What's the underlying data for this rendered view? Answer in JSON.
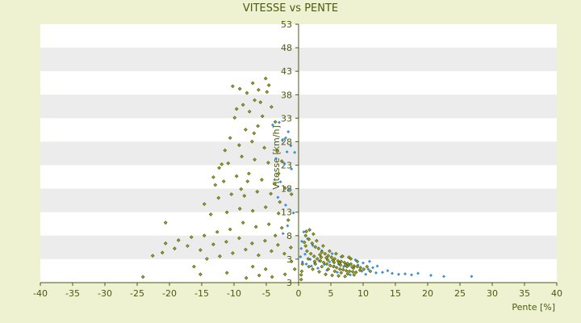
{
  "chart_data": {
    "type": "scatter",
    "title": "VITESSE vs PENTE",
    "xlabel": "Pente [%]",
    "ylabel": "Vitesse [km/h]",
    "xlim": [
      -40,
      40
    ],
    "ylim": [
      3,
      53
    ],
    "x_ticks": [
      "-40",
      "-35",
      "-30",
      "-25",
      "-20",
      "-15",
      "-10",
      "-5",
      "0",
      "5",
      "10",
      "15",
      "20",
      "25",
      "30",
      "35",
      "40"
    ],
    "y_ticks": [
      "53",
      "48",
      "43",
      "38",
      "33",
      "28",
      "23",
      "18",
      "13",
      "8",
      "3",
      "3"
    ],
    "grid": "alternating horizontal bands",
    "colors": {
      "background": "#eef2d0",
      "plot_band_light": "#ffffff",
      "plot_band_dark": "#ececec",
      "axis": "#4b5a12",
      "series_a": "#3a8fd8",
      "series_b": "#9aa21c"
    },
    "series": [
      {
        "color": "#3a8fd8",
        "points": [
          [
            -1.6,
            32.2
          ],
          [
            -2.0,
            31.0
          ],
          [
            -1.2,
            29.5
          ],
          [
            -2.5,
            30.5
          ],
          [
            -1.8,
            28.3
          ],
          [
            -0.6,
            28.2
          ],
          [
            -3.0,
            34.0
          ],
          [
            -2.2,
            26.0
          ],
          [
            -1.1,
            25.0
          ],
          [
            -2.8,
            22.5
          ],
          [
            -1.5,
            21.0
          ],
          [
            -3.2,
            19.5
          ],
          [
            -2.0,
            18.0
          ],
          [
            -0.8,
            16.5
          ],
          [
            -1.7,
            14.0
          ],
          [
            -2.4,
            12.5
          ],
          [
            -3.5,
            27.0
          ],
          [
            -4.0,
            33.5
          ],
          [
            1.0,
            8.5
          ],
          [
            1.8,
            7.5
          ],
          [
            2.5,
            6.8
          ],
          [
            3.2,
            7.2
          ],
          [
            4.0,
            6.5
          ],
          [
            4.8,
            7.0
          ],
          [
            5.5,
            6.2
          ],
          [
            6.2,
            6.6
          ],
          [
            7.0,
            6.1
          ],
          [
            7.8,
            6.3
          ],
          [
            8.5,
            6.0
          ],
          [
            9.2,
            6.4
          ],
          [
            10.0,
            6.8
          ],
          [
            10.8,
            5.6
          ],
          [
            11.5,
            5.9
          ],
          [
            12.2,
            6.2
          ],
          [
            13.0,
            5.0
          ],
          [
            13.8,
            5.3
          ],
          [
            14.5,
            4.8
          ],
          [
            15.5,
            4.6
          ],
          [
            16.5,
            4.7
          ],
          [
            17.5,
            4.5
          ],
          [
            18.5,
            4.8
          ],
          [
            20.5,
            4.4
          ],
          [
            22.5,
            4.2
          ],
          [
            26.8,
            4.2
          ],
          [
            9.8,
            5.2
          ],
          [
            8.8,
            7.4
          ],
          [
            6.6,
            8.0
          ],
          [
            5.2,
            8.6
          ],
          [
            3.6,
            9.2
          ],
          [
            2.2,
            10.2
          ],
          [
            1.4,
            11.5
          ],
          [
            0.8,
            12.8
          ],
          [
            11.0,
            7.1
          ],
          [
            12.0,
            4.9
          ],
          [
            10.4,
            4.6
          ],
          [
            8.0,
            4.5
          ],
          [
            6.0,
            5.0
          ],
          [
            4.4,
            5.4
          ],
          [
            3.0,
            5.8
          ],
          [
            2.0,
            6.2
          ],
          [
            1.2,
            6.6
          ],
          [
            0.6,
            7.0
          ],
          [
            0.3,
            8.0
          ],
          [
            0.4,
            9.6
          ],
          [
            0.5,
            11.0
          ]
        ]
      },
      {
        "color": "#9aa21c",
        "points": [
          [
            -10.2,
            41.0
          ],
          [
            -9.1,
            40.5
          ],
          [
            -8.0,
            39.7
          ],
          [
            -7.1,
            41.6
          ],
          [
            -6.2,
            40.3
          ],
          [
            -5.1,
            42.5
          ],
          [
            -4.6,
            41.2
          ],
          [
            -6.8,
            38.3
          ],
          [
            -8.6,
            37.4
          ],
          [
            -9.6,
            36.6
          ],
          [
            -7.6,
            36.1
          ],
          [
            -5.6,
            35.2
          ],
          [
            -4.2,
            37.0
          ],
          [
            -3.6,
            34.1
          ],
          [
            -6.3,
            33.3
          ],
          [
            -8.2,
            32.6
          ],
          [
            -10.6,
            31.0
          ],
          [
            -11.4,
            28.6
          ],
          [
            -9.2,
            29.6
          ],
          [
            -7.2,
            30.3
          ],
          [
            -5.3,
            29.1
          ],
          [
            -3.3,
            28.4
          ],
          [
            -2.6,
            26.5
          ],
          [
            -4.7,
            26.2
          ],
          [
            -6.8,
            26.8
          ],
          [
            -8.8,
            27.4
          ],
          [
            -10.9,
            26.1
          ],
          [
            -12.3,
            25.2
          ],
          [
            -13.2,
            23.4
          ],
          [
            -11.6,
            22.6
          ],
          [
            -9.6,
            23.6
          ],
          [
            -7.7,
            24.1
          ],
          [
            -5.7,
            22.9
          ],
          [
            -3.7,
            22.1
          ],
          [
            -2.1,
            21.3
          ],
          [
            -4.3,
            20.2
          ],
          [
            -6.4,
            20.6
          ],
          [
            -8.4,
            19.8
          ],
          [
            -10.4,
            20.1
          ],
          [
            -12.4,
            19.4
          ],
          [
            -14.6,
            18.2
          ],
          [
            -13.6,
            16.2
          ],
          [
            -11.1,
            16.6
          ],
          [
            -9.1,
            17.3
          ],
          [
            -7.1,
            16.9
          ],
          [
            -5.1,
            17.6
          ],
          [
            -3.1,
            16.4
          ],
          [
            -1.6,
            15.1
          ],
          [
            -2.6,
            13.6
          ],
          [
            -4.6,
            14.3
          ],
          [
            -6.6,
            13.8
          ],
          [
            -8.6,
            14.6
          ],
          [
            -10.6,
            13.3
          ],
          [
            -12.6,
            12.8
          ],
          [
            -14.6,
            12.1
          ],
          [
            -16.6,
            11.8
          ],
          [
            -18.6,
            11.2
          ],
          [
            -20.6,
            10.6
          ],
          [
            -22.6,
            8.2
          ],
          [
            -21.1,
            8.8
          ],
          [
            -19.2,
            9.6
          ],
          [
            -17.2,
            10.1
          ],
          [
            -15.2,
            9.3
          ],
          [
            -13.2,
            10.4
          ],
          [
            -11.2,
            10.9
          ],
          [
            -9.2,
            11.6
          ],
          [
            -7.2,
            10.6
          ],
          [
            -5.2,
            11.1
          ],
          [
            -3.2,
            10.3
          ],
          [
            -1.2,
            9.8
          ],
          [
            -2.2,
            8.6
          ],
          [
            -4.2,
            9.1
          ],
          [
            -6.2,
            8.3
          ],
          [
            -8.2,
            9.4
          ],
          [
            -10.2,
            8.7
          ],
          [
            -12.2,
            8.1
          ],
          [
            -14.2,
            7.6
          ],
          [
            -16.2,
            6.1
          ],
          [
            -15.2,
            4.6
          ],
          [
            -8.1,
            3.9
          ],
          [
            -6.1,
            4.4
          ],
          [
            -4.1,
            4.1
          ],
          [
            -2.1,
            4.6
          ],
          [
            -11.1,
            4.9
          ],
          [
            -7.1,
            6.1
          ],
          [
            -5.1,
            5.6
          ],
          [
            -24.1,
            4.1
          ],
          [
            -20.6,
            14.6
          ],
          [
            -1.1,
            7.1
          ],
          [
            -0.6,
            5.6
          ],
          [
            -3.6,
            12.1
          ],
          [
            -9.9,
            34.9
          ],
          [
            -6.9,
            31.9
          ],
          [
            -5.9,
            37.9
          ],
          [
            -4.9,
            39.9
          ],
          [
            -11.9,
            25.9
          ],
          [
            -12.9,
            21.9
          ],
          [
            -8.9,
            21.1
          ],
          [
            -3.1,
            24.1
          ],
          [
            -1.1,
            20.1
          ],
          [
            -2.9,
            18.6
          ],
          [
            -7.9,
            22.6
          ],
          [
            0.4,
            4.5
          ],
          [
            0.5,
            5.2
          ],
          [
            0.4,
            3.6
          ],
          [
            0.6,
            6.6
          ],
          [
            1.1,
            12.1
          ],
          [
            1.6,
            11.4
          ],
          [
            2.1,
            10.6
          ],
          [
            2.6,
            9.9
          ],
          [
            3.1,
            9.6
          ],
          [
            3.6,
            8.9
          ],
          [
            4.1,
            8.6
          ],
          [
            4.6,
            8.2
          ],
          [
            5.1,
            7.9
          ],
          [
            5.6,
            7.6
          ],
          [
            6.1,
            7.2
          ],
          [
            6.6,
            7.1
          ],
          [
            7.1,
            6.9
          ],
          [
            7.6,
            6.7
          ],
          [
            8.1,
            6.6
          ],
          [
            8.6,
            6.2
          ],
          [
            9.1,
            6.1
          ],
          [
            9.6,
            5.9
          ],
          [
            10.1,
            5.6
          ],
          [
            1.3,
            9.1
          ],
          [
            1.9,
            8.6
          ],
          [
            2.4,
            8.1
          ],
          [
            2.9,
            7.6
          ],
          [
            3.4,
            7.2
          ],
          [
            3.9,
            6.9
          ],
          [
            4.4,
            6.6
          ],
          [
            4.9,
            6.3
          ],
          [
            5.4,
            6.1
          ],
          [
            5.9,
            5.9
          ],
          [
            6.4,
            5.6
          ],
          [
            6.9,
            5.5
          ],
          [
            7.4,
            5.3
          ],
          [
            7.9,
            5.2
          ],
          [
            8.4,
            5.1
          ],
          [
            8.9,
            5.0
          ],
          [
            2.2,
            5.6
          ],
          [
            3.2,
            5.1
          ],
          [
            4.2,
            4.6
          ],
          [
            5.2,
            4.4
          ],
          [
            6.2,
            4.3
          ],
          [
            7.2,
            4.2
          ],
          [
            1.6,
            6.1
          ],
          [
            2.6,
            6.6
          ],
          [
            3.6,
            6.1
          ],
          [
            4.6,
            5.6
          ],
          [
            5.6,
            5.2
          ],
          [
            6.6,
            4.9
          ],
          [
            7.6,
            4.7
          ],
          [
            8.6,
            4.5
          ],
          [
            1.1,
            10.1
          ],
          [
            1.5,
            7.6
          ],
          [
            2.5,
            7.1
          ],
          [
            3.5,
            7.9
          ],
          [
            4.5,
            7.4
          ],
          [
            5.5,
            6.9
          ],
          [
            6.5,
            6.4
          ],
          [
            7.5,
            6.1
          ],
          [
            8.5,
            5.8
          ],
          [
            9.5,
            5.4
          ],
          [
            11.1,
            5.2
          ],
          [
            10.6,
            6.1
          ],
          [
            9.1,
            7.1
          ],
          [
            8.1,
            7.6
          ],
          [
            2.8,
            11.1
          ],
          [
            3.8,
            10.1
          ],
          [
            4.8,
            9.1
          ],
          [
            5.8,
            8.6
          ],
          [
            6.8,
            8.1
          ],
          [
            7.8,
            7.9
          ],
          [
            1.2,
            12.9
          ],
          [
            1.7,
            13.2
          ],
          [
            0.9,
            10.8
          ],
          [
            2.3,
            12.4
          ],
          [
            3.3,
            8.4
          ],
          [
            4.3,
            7.8
          ],
          [
            5.3,
            7.3
          ],
          [
            6.3,
            6.8
          ],
          [
            7.3,
            6.4
          ],
          [
            8.3,
            6.0
          ]
        ]
      }
    ]
  }
}
